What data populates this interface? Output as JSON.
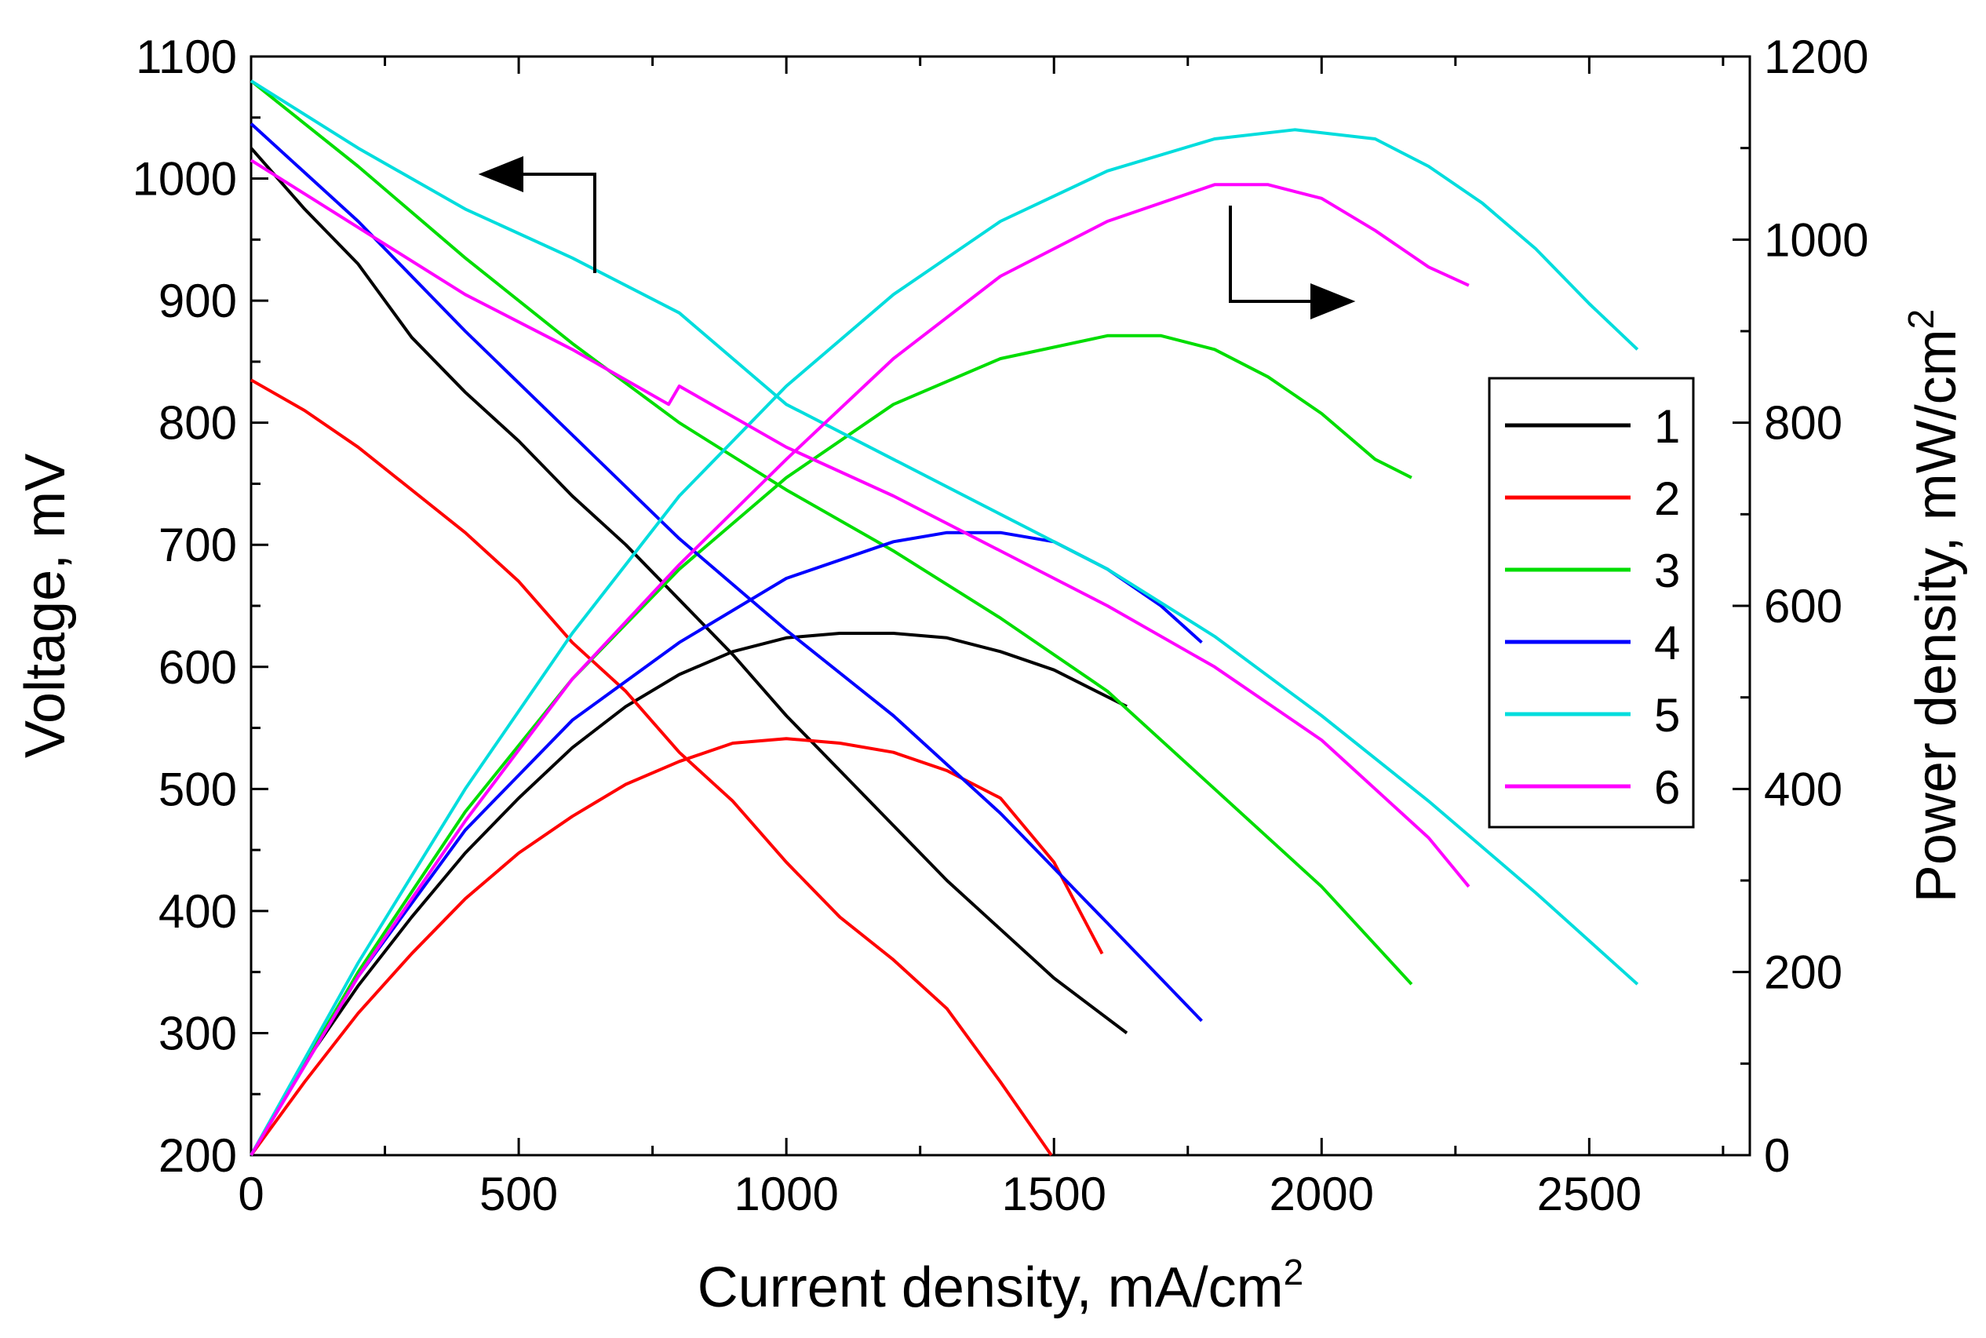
{
  "chart_data": {
    "type": "line",
    "xlabel": "Current density, mA/cm",
    "xlabel_sup": "2",
    "ylabel_left": "Voltage, mV",
    "ylabel_right": "Power density, mW/cm",
    "ylabel_right_sup": "2",
    "xlim": [
      0,
      2800
    ],
    "ylim_left": [
      200,
      1100
    ],
    "ylim_right": [
      0,
      1200
    ],
    "x_ticks": [
      0,
      500,
      1000,
      1500,
      2000,
      2500
    ],
    "y_left_ticks": [
      200,
      300,
      400,
      500,
      600,
      700,
      800,
      900,
      1000,
      1100
    ],
    "y_right_ticks": [
      0,
      200,
      400,
      600,
      800,
      1000,
      1200
    ],
    "grid": false,
    "legend_position": "center-right",
    "legend_labels": [
      "1",
      "2",
      "3",
      "4",
      "5",
      "6"
    ],
    "series": [
      {
        "name": "1",
        "color": "#000000",
        "voltage": {
          "x": [
            0,
            100,
            200,
            300,
            400,
            500,
            600,
            700,
            800,
            900,
            1000,
            1100,
            1200,
            1300,
            1400,
            1500,
            1636
          ],
          "y": [
            1025,
            975,
            930,
            870,
            825,
            785,
            740,
            700,
            655,
            610,
            560,
            515,
            470,
            425,
            385,
            345,
            300
          ]
        },
        "power": {
          "x": [
            0,
            100,
            200,
            300,
            400,
            500,
            600,
            700,
            800,
            900,
            1000,
            1100,
            1200,
            1300,
            1400,
            1500,
            1636
          ],
          "y": [
            0,
            100,
            185,
            260,
            330,
            390,
            445,
            490,
            525,
            550,
            565,
            570,
            570,
            565,
            550,
            530,
            490
          ]
        }
      },
      {
        "name": "2",
        "color": "#ff0000",
        "voltage": {
          "x": [
            0,
            100,
            200,
            300,
            400,
            500,
            600,
            700,
            800,
            900,
            1000,
            1100,
            1200,
            1300,
            1400,
            1495
          ],
          "y": [
            835,
            810,
            780,
            745,
            710,
            670,
            620,
            580,
            530,
            490,
            440,
            395,
            360,
            320,
            260,
            200
          ]
        },
        "power": {
          "x": [
            0,
            100,
            200,
            300,
            400,
            500,
            600,
            700,
            800,
            900,
            1000,
            1100,
            1200,
            1300,
            1400,
            1500,
            1590
          ],
          "y": [
            0,
            80,
            155,
            220,
            280,
            330,
            370,
            405,
            430,
            450,
            455,
            450,
            440,
            420,
            390,
            320,
            220
          ]
        }
      },
      {
        "name": "3",
        "color": "#00dd00",
        "voltage": {
          "x": [
            0,
            200,
            400,
            600,
            800,
            1000,
            1200,
            1400,
            1600,
            1800,
            2000,
            2168
          ],
          "y": [
            1080,
            1010,
            935,
            865,
            800,
            745,
            695,
            640,
            580,
            500,
            420,
            340
          ]
        },
        "power": {
          "x": [
            0,
            200,
            400,
            600,
            800,
            1000,
            1200,
            1400,
            1600,
            1700,
            1800,
            1900,
            2000,
            2100,
            2168
          ],
          "y": [
            0,
            200,
            375,
            520,
            640,
            740,
            820,
            870,
            895,
            895,
            880,
            850,
            810,
            760,
            740
          ]
        }
      },
      {
        "name": "4",
        "color": "#0000ff",
        "voltage": {
          "x": [
            0,
            200,
            400,
            600,
            800,
            1000,
            1200,
            1400,
            1600,
            1776
          ],
          "y": [
            1045,
            965,
            875,
            790,
            705,
            630,
            560,
            480,
            390,
            310
          ]
        },
        "power": {
          "x": [
            0,
            200,
            400,
            600,
            800,
            1000,
            1200,
            1300,
            1400,
            1500,
            1600,
            1700,
            1776
          ],
          "y": [
            0,
            195,
            355,
            475,
            560,
            630,
            670,
            680,
            680,
            670,
            640,
            600,
            560
          ]
        }
      },
      {
        "name": "5",
        "color": "#00dddd",
        "voltage": {
          "x": [
            0,
            200,
            400,
            600,
            800,
            1000,
            1200,
            1400,
            1600,
            1800,
            2000,
            2200,
            2400,
            2590
          ],
          "y": [
            1080,
            1025,
            975,
            935,
            890,
            815,
            770,
            725,
            680,
            625,
            560,
            490,
            415,
            340
          ]
        },
        "power": {
          "x": [
            0,
            200,
            400,
            600,
            800,
            1000,
            1200,
            1400,
            1600,
            1800,
            1950,
            2100,
            2200,
            2300,
            2400,
            2500,
            2590
          ],
          "y": [
            0,
            210,
            400,
            570,
            720,
            840,
            940,
            1020,
            1075,
            1110,
            1120,
            1110,
            1080,
            1040,
            990,
            930,
            880
          ]
        }
      },
      {
        "name": "6",
        "color": "#ff00ff",
        "voltage": {
          "x": [
            0,
            200,
            400,
            600,
            780,
            800,
            1000,
            1200,
            1400,
            1600,
            1800,
            2000,
            2200,
            2275
          ],
          "y": [
            1015,
            960,
            905,
            860,
            815,
            830,
            780,
            740,
            695,
            650,
            600,
            540,
            460,
            420
          ]
        },
        "power": {
          "x": [
            0,
            200,
            400,
            600,
            800,
            1000,
            1200,
            1400,
            1600,
            1800,
            1900,
            2000,
            2100,
            2200,
            2275
          ],
          "y": [
            0,
            195,
            365,
            520,
            645,
            760,
            870,
            960,
            1020,
            1060,
            1060,
            1045,
            1010,
            970,
            950
          ]
        }
      }
    ]
  }
}
